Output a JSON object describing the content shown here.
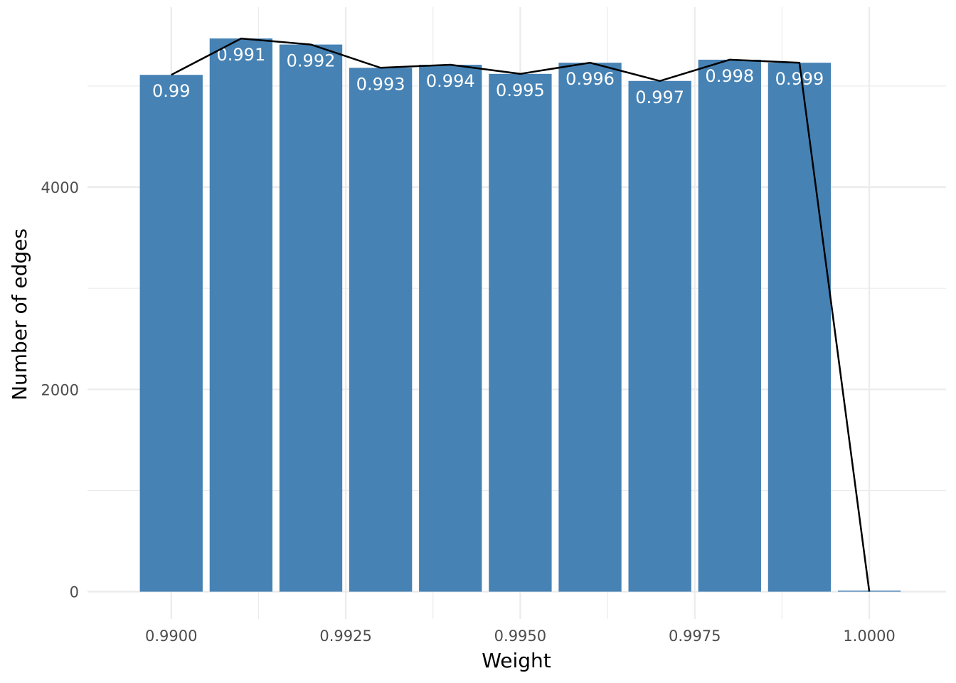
{
  "chart_data": {
    "type": "bar",
    "title": "",
    "xlabel": "Weight",
    "ylabel": "Number of edges",
    "x": [
      0.99,
      0.991,
      0.992,
      0.993,
      0.994,
      0.995,
      0.996,
      0.997,
      0.998,
      0.999,
      1.0
    ],
    "values": [
      5110,
      5470,
      5410,
      5180,
      5210,
      5120,
      5230,
      5050,
      5260,
      5230,
      10
    ],
    "bar_labels": [
      "0.99",
      "0.991",
      "0.992",
      "0.993",
      "0.994",
      "0.995",
      "0.996",
      "0.997",
      "0.998",
      "0.999",
      ""
    ],
    "line_values": [
      5110,
      5470,
      5410,
      5180,
      5210,
      5120,
      5230,
      5050,
      5260,
      5230,
      0
    ],
    "xlim": [
      0.9888,
      1.0011
    ],
    "ylim": [
      -270,
      5780
    ],
    "x_ticks": [
      0.99,
      0.9925,
      0.995,
      0.9975,
      1.0
    ],
    "x_tick_labels": [
      "0.9900",
      "0.9925",
      "0.9950",
      "0.9975",
      "1.0000"
    ],
    "y_ticks": [
      0,
      2000,
      4000
    ],
    "y_tick_labels": [
      "0",
      "2000",
      "4000"
    ],
    "bar_width": 0.0009,
    "bar_color": "#4682B4",
    "line_color": "#000000",
    "grid": true,
    "legend": "none"
  }
}
